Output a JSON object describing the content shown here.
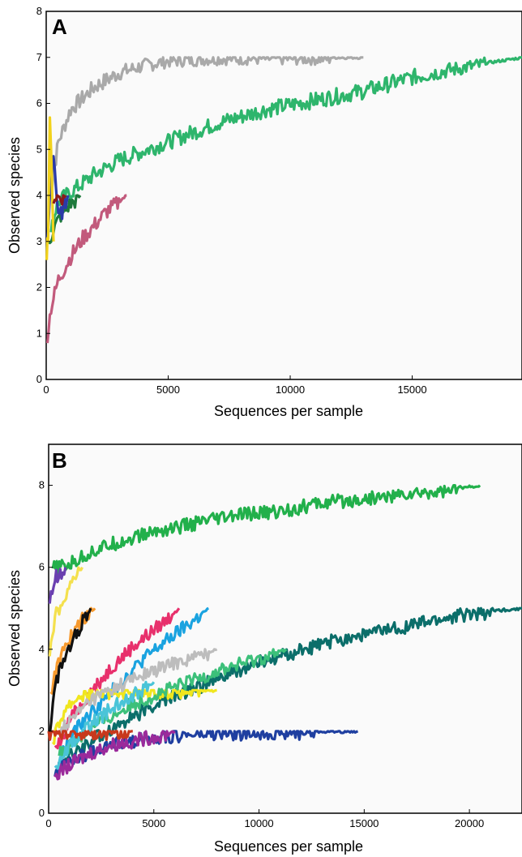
{
  "chart_data": [
    {
      "type": "line",
      "panel_label": "A",
      "xlabel": "Sequences per sample",
      "ylabel": "Observed species",
      "xlim": [
        0,
        19500
      ],
      "ylim": [
        0,
        8
      ],
      "xticks": [
        0,
        5000,
        10000,
        15000
      ],
      "yticks": [
        0,
        1,
        2,
        3,
        4,
        5,
        6,
        7,
        8
      ],
      "grid": false,
      "series": [
        {
          "color": "#a9a9a9",
          "x": [
            100,
            500,
            1000,
            2000,
            3000,
            4000,
            5000,
            7000,
            10000,
            13000
          ],
          "values": [
            3.8,
            5.2,
            5.9,
            6.4,
            6.7,
            6.85,
            6.95,
            7,
            7,
            7
          ]
        },
        {
          "color": "#2eb56c",
          "x": [
            200,
            500,
            1000,
            2000,
            3000,
            5000,
            7000,
            9000,
            11000,
            13000,
            15000,
            17000,
            19500
          ],
          "values": [
            3.4,
            3.9,
            4.1,
            4.5,
            4.8,
            5.2,
            5.6,
            5.9,
            6.1,
            6.3,
            6.6,
            6.8,
            7
          ]
        },
        {
          "color": "#c25a7c",
          "x": [
            50,
            200,
            500,
            1000,
            1500,
            2000,
            2500,
            3300
          ],
          "values": [
            1,
            1.6,
            2.2,
            2.7,
            3.1,
            3.4,
            3.7,
            4
          ]
        },
        {
          "color": "#1e7a3c",
          "x": [
            100,
            300,
            600,
            900,
            1400
          ],
          "values": [
            3,
            3.3,
            3.6,
            3.8,
            4
          ]
        },
        {
          "color": "#2b3aa8",
          "x": [
            50,
            150,
            300,
            500,
            900
          ],
          "values": [
            3,
            4,
            5,
            3.5,
            4
          ]
        },
        {
          "color": "#f2d21b",
          "x": [
            20,
            80,
            150,
            300
          ],
          "values": [
            2.8,
            3.2,
            5.8,
            3
          ]
        },
        {
          "color": "#8b1a1a",
          "x": [
            300,
            500,
            800
          ],
          "values": [
            4,
            4,
            4
          ]
        }
      ]
    },
    {
      "type": "line",
      "panel_label": "B",
      "xlabel": "Sequences per sample",
      "ylabel": "Observed species",
      "xlim": [
        0,
        22500
      ],
      "ylim": [
        0,
        9
      ],
      "xticks": [
        0,
        5000,
        10000,
        15000,
        20000
      ],
      "yticks": [
        0,
        2,
        4,
        6,
        8
      ],
      "grid": false,
      "series": [
        {
          "color": "#22b04b",
          "x": [
            200,
            1000,
            2000,
            3000,
            5000,
            7000,
            9000,
            11000,
            13000,
            15000,
            17000,
            19000,
            20500
          ],
          "values": [
            6,
            6.1,
            6.4,
            6.6,
            6.9,
            7.1,
            7.3,
            7.4,
            7.6,
            7.7,
            7.8,
            7.9,
            8
          ]
        },
        {
          "color": "#0b6e6a",
          "x": [
            500,
            2000,
            4000,
            6000,
            8000,
            10000,
            12000,
            14000,
            16000,
            18000,
            20000,
            22500
          ],
          "values": [
            1.2,
            1.8,
            2.4,
            2.9,
            3.3,
            3.7,
            4,
            4.3,
            4.5,
            4.7,
            4.9,
            5
          ]
        },
        {
          "color": "#1f3fa0",
          "x": [
            300,
            1000,
            2000,
            3000,
            4000,
            5000,
            7000,
            10000,
            14700
          ],
          "values": [
            1.1,
            1.3,
            1.5,
            1.7,
            1.8,
            1.9,
            1.95,
            2,
            2
          ]
        },
        {
          "color": "#1aa3e0",
          "x": [
            500,
            1500,
            3000,
            4500,
            6000,
            7600
          ],
          "values": [
            1.4,
            2.2,
            3,
            3.8,
            4.4,
            5
          ]
        },
        {
          "color": "#e8306c",
          "x": [
            300,
            1000,
            2000,
            3000,
            4000,
            5000,
            6200
          ],
          "values": [
            1.5,
            2.3,
            3,
            3.6,
            4.1,
            4.5,
            5
          ]
        },
        {
          "color": "#9b2a9b",
          "x": [
            300,
            1000,
            2000,
            3000,
            4000,
            5000,
            6000
          ],
          "values": [
            1,
            1.2,
            1.5,
            1.7,
            1.8,
            1.9,
            2
          ]
        },
        {
          "color": "#f0e61e",
          "x": [
            200,
            800,
            1500,
            3000,
            5000,
            8000
          ],
          "values": [
            1.8,
            2.6,
            2.9,
            3,
            3,
            3
          ]
        },
        {
          "color": "#3cc07a",
          "x": [
            500,
            2000,
            4000,
            6000,
            8000,
            10000,
            11300
          ],
          "values": [
            1.5,
            2.1,
            2.7,
            3.1,
            3.5,
            3.8,
            4
          ]
        },
        {
          "color": "#bdbdbd",
          "x": [
            500,
            2000,
            4000,
            6000,
            8000
          ],
          "values": [
            2,
            2.8,
            3.3,
            3.7,
            4
          ]
        },
        {
          "color": "#4ac4d8",
          "x": [
            300,
            1000,
            2000,
            3500,
            5000
          ],
          "values": [
            1.2,
            1.7,
            2.2,
            2.8,
            3.2
          ]
        },
        {
          "color": "#f79a2e",
          "x": [
            100,
            400,
            800,
            1200,
            1600,
            2200
          ],
          "values": [
            3,
            3.6,
            4.1,
            4.5,
            4.8,
            5
          ]
        },
        {
          "color": "#111111",
          "x": [
            50,
            200,
            500,
            900,
            1500,
            2000
          ],
          "values": [
            2,
            2.8,
            3.5,
            4,
            4.6,
            5
          ]
        },
        {
          "color": "#f4e04d",
          "x": [
            50,
            300,
            700,
            1100,
            1600
          ],
          "values": [
            4,
            4.8,
            5.3,
            5.7,
            6
          ]
        },
        {
          "color": "#6a3fb0",
          "x": [
            50,
            300,
            800
          ],
          "values": [
            5.2,
            5.8,
            6
          ]
        },
        {
          "color": "#c8381c",
          "x": [
            0,
            1000,
            2000,
            3000,
            4000
          ],
          "values": [
            2,
            2,
            2,
            2,
            2
          ]
        }
      ]
    }
  ]
}
